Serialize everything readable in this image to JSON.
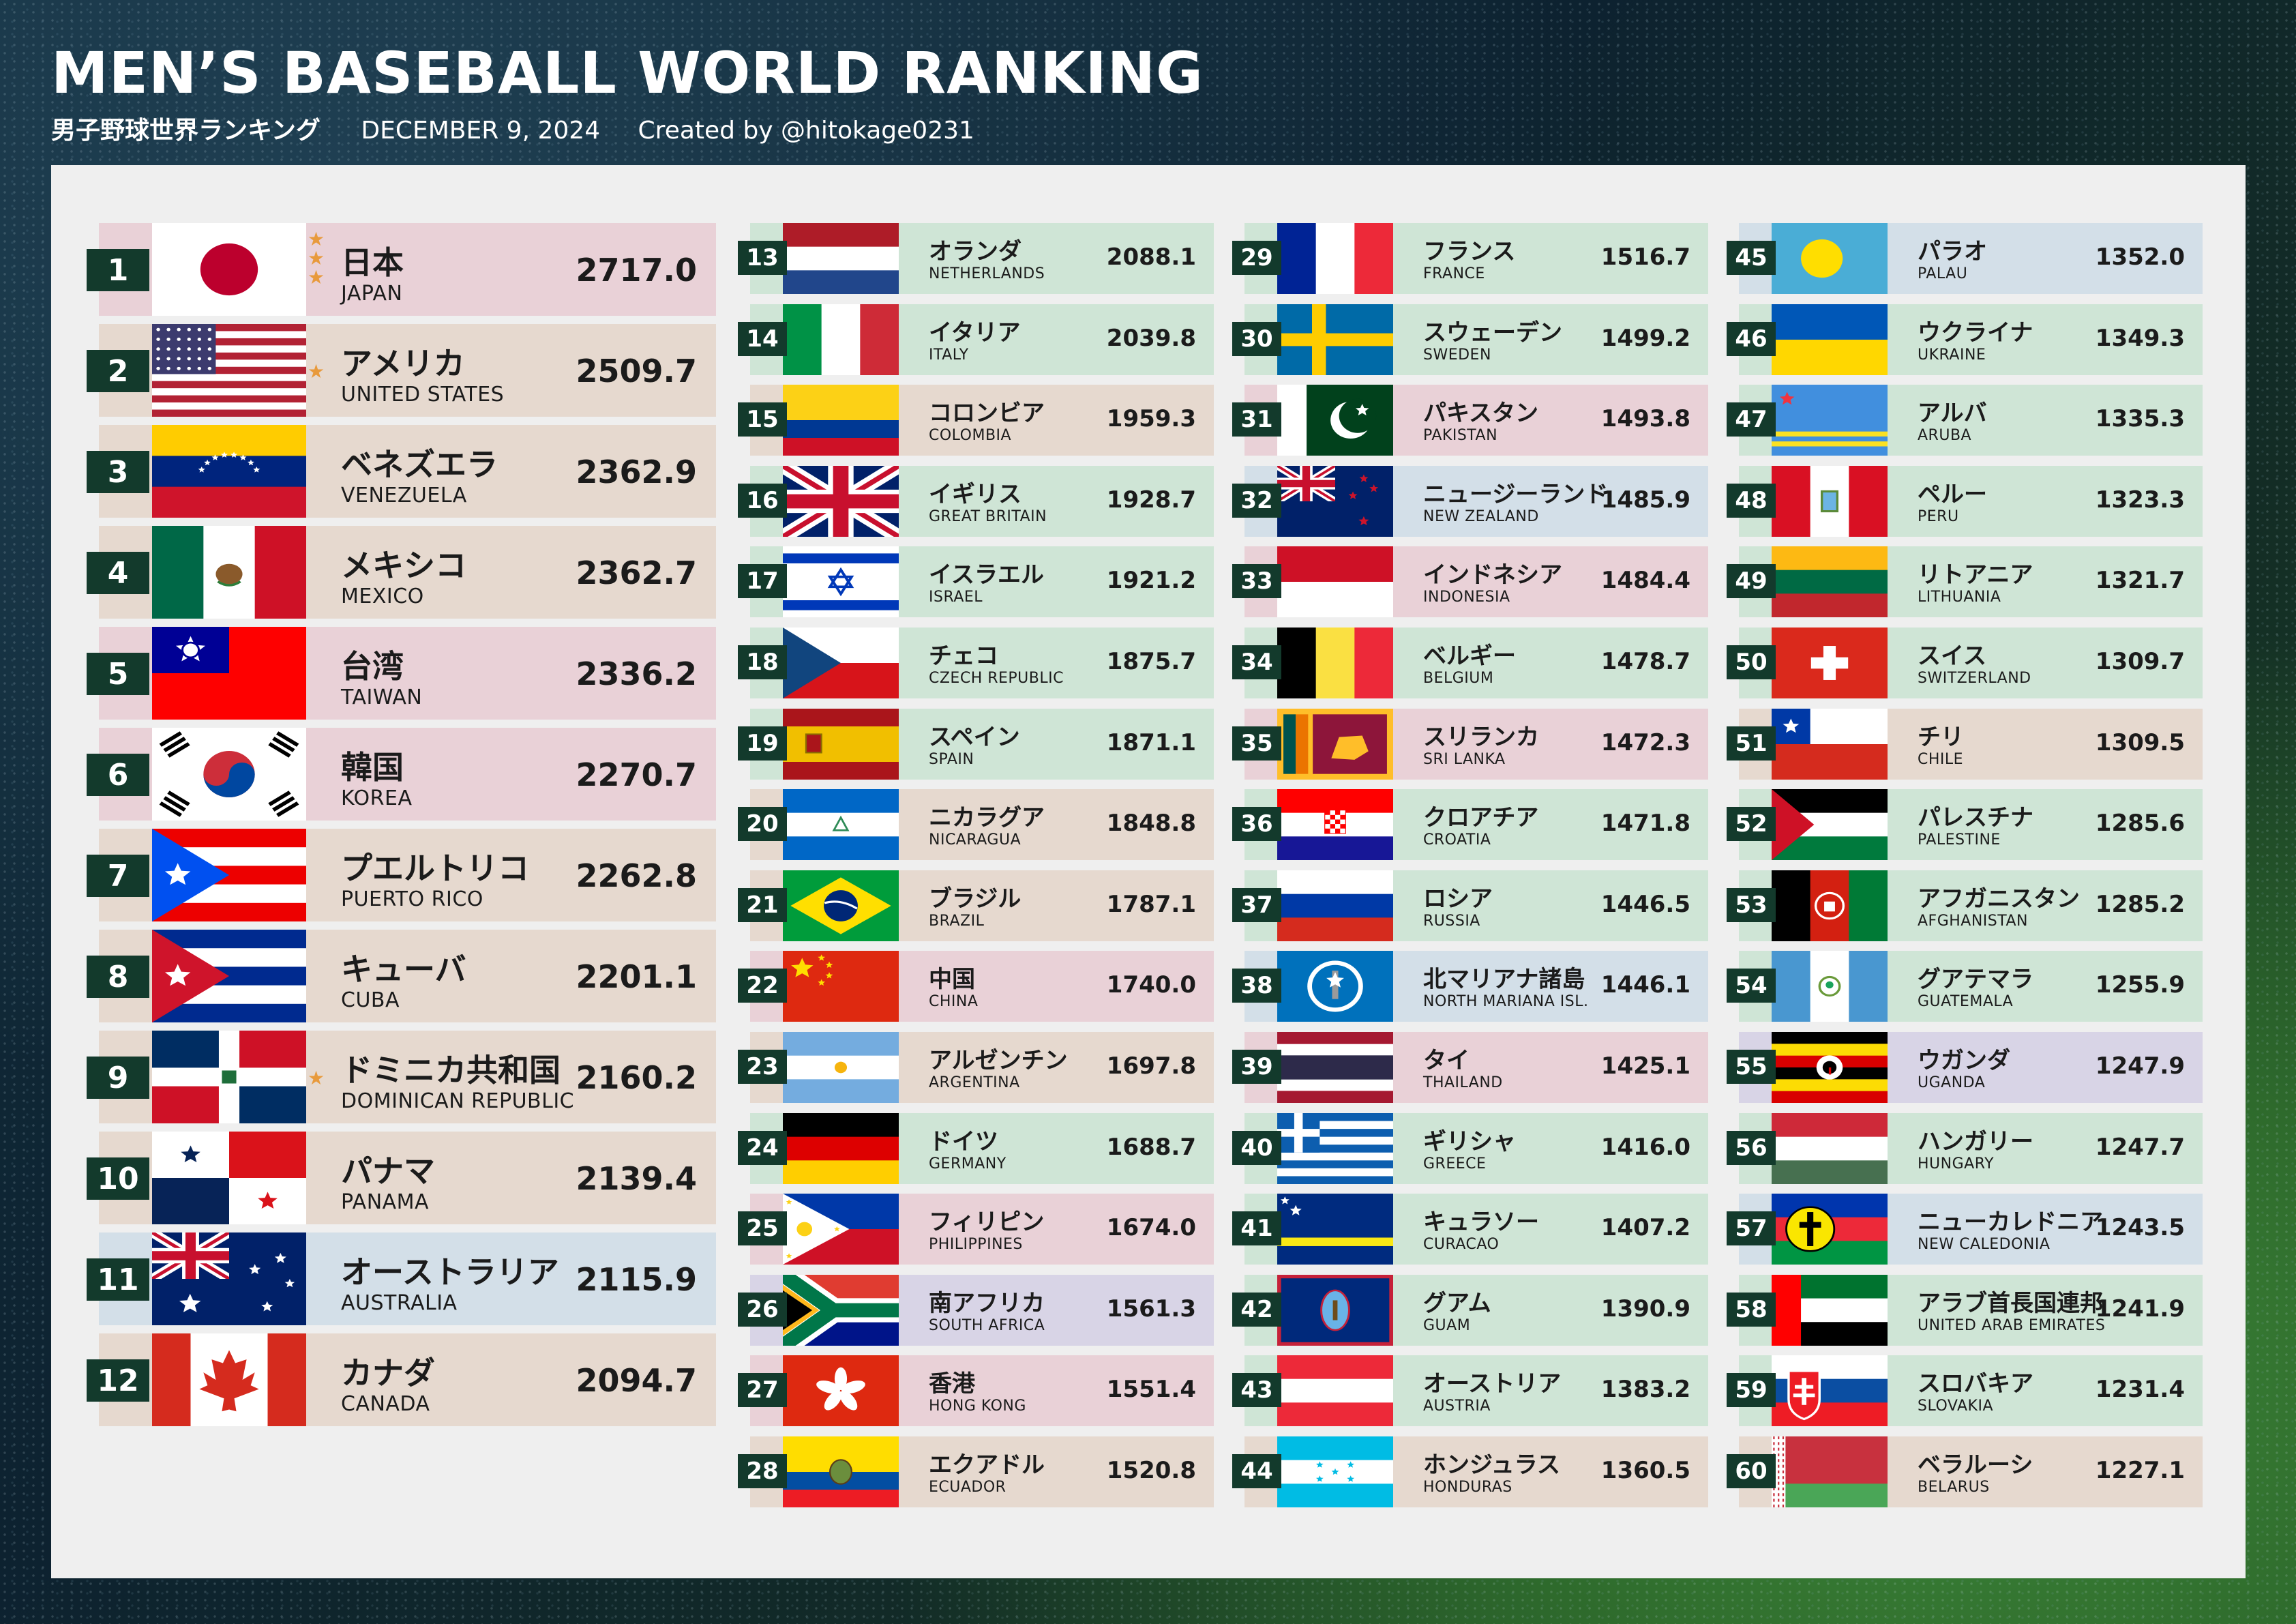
{
  "header": {
    "title": "MEN’S BASEBALL WORLD RANKING",
    "subtitle_jp": "男子野球世界ランキング",
    "date": "DECEMBER 9, 2024",
    "credit": "Created by @hitokage0231"
  },
  "colors": {
    "rank_badge": "#133a2c",
    "star": "#e89a3c",
    "panel": "#efefef"
  },
  "rankings": [
    {
      "rank": "1",
      "jp": "日本",
      "en": "JAPAN",
      "score": "2717.0",
      "stars": 3,
      "bg": "pink",
      "flag": "japan"
    },
    {
      "rank": "2",
      "jp": "アメリカ",
      "en": "UNITED STATES",
      "score": "2509.7",
      "stars": 1,
      "bg": "tan",
      "flag": "usa"
    },
    {
      "rank": "3",
      "jp": "ベネズエラ",
      "en": "VENEZUELA",
      "score": "2362.9",
      "stars": 0,
      "bg": "tan",
      "flag": "venezuela"
    },
    {
      "rank": "4",
      "jp": "メキシコ",
      "en": "MEXICO",
      "score": "2362.7",
      "stars": 0,
      "bg": "tan",
      "flag": "mexico"
    },
    {
      "rank": "5",
      "jp": "台湾",
      "en": "TAIWAN",
      "score": "2336.2",
      "stars": 0,
      "bg": "pink",
      "flag": "taiwan"
    },
    {
      "rank": "6",
      "jp": "韓国",
      "en": "KOREA",
      "score": "2270.7",
      "stars": 0,
      "bg": "pink",
      "flag": "korea"
    },
    {
      "rank": "7",
      "jp": "プエルトリコ",
      "en": "PUERTO RICO",
      "score": "2262.8",
      "stars": 0,
      "bg": "tan",
      "flag": "puertorico"
    },
    {
      "rank": "8",
      "jp": "キューバ",
      "en": "CUBA",
      "score": "2201.1",
      "stars": 0,
      "bg": "tan",
      "flag": "cuba"
    },
    {
      "rank": "9",
      "jp": "ドミニカ共和国",
      "en": "DOMINICAN REPUBLIC",
      "score": "2160.2",
      "stars": 1,
      "bg": "tan",
      "flag": "dominican"
    },
    {
      "rank": "10",
      "jp": "パナマ",
      "en": "PANAMA",
      "score": "2139.4",
      "stars": 0,
      "bg": "tan",
      "flag": "panama"
    },
    {
      "rank": "11",
      "jp": "オーストラリア",
      "en": "AUSTRALIA",
      "score": "2115.9",
      "stars": 0,
      "bg": "sky",
      "flag": "australia"
    },
    {
      "rank": "12",
      "jp": "カナダ",
      "en": "CANADA",
      "score": "2094.7",
      "stars": 0,
      "bg": "tan",
      "flag": "canada"
    },
    {
      "rank": "13",
      "jp": "オランダ",
      "en": "NETHERLANDS",
      "score": "2088.1",
      "bg": "green",
      "flag": "netherlands"
    },
    {
      "rank": "14",
      "jp": "イタリア",
      "en": "ITALY",
      "score": "2039.8",
      "bg": "green",
      "flag": "italy"
    },
    {
      "rank": "15",
      "jp": "コロンビア",
      "en": "COLOMBIA",
      "score": "1959.3",
      "bg": "tan",
      "flag": "colombia"
    },
    {
      "rank": "16",
      "jp": "イギリス",
      "en": "GREAT BRITAIN",
      "score": "1928.7",
      "bg": "green",
      "flag": "uk"
    },
    {
      "rank": "17",
      "jp": "イスラエル",
      "en": "ISRAEL",
      "score": "1921.2",
      "bg": "green",
      "flag": "israel"
    },
    {
      "rank": "18",
      "jp": "チェコ",
      "en": "CZECH REPUBLIC",
      "score": "1875.7",
      "bg": "green",
      "flag": "czech"
    },
    {
      "rank": "19",
      "jp": "スペイン",
      "en": "SPAIN",
      "score": "1871.1",
      "bg": "green",
      "flag": "spain"
    },
    {
      "rank": "20",
      "jp": "ニカラグア",
      "en": "NICARAGUA",
      "score": "1848.8",
      "bg": "tan",
      "flag": "nicaragua"
    },
    {
      "rank": "21",
      "jp": "ブラジル",
      "en": "BRAZIL",
      "score": "1787.1",
      "bg": "tan",
      "flag": "brazil"
    },
    {
      "rank": "22",
      "jp": "中国",
      "en": "CHINA",
      "score": "1740.0",
      "bg": "pink",
      "flag": "china"
    },
    {
      "rank": "23",
      "jp": "アルゼンチン",
      "en": "ARGENTINA",
      "score": "1697.8",
      "bg": "tan",
      "flag": "argentina"
    },
    {
      "rank": "24",
      "jp": "ドイツ",
      "en": "GERMANY",
      "score": "1688.7",
      "bg": "green",
      "flag": "germany"
    },
    {
      "rank": "25",
      "jp": "フィリピン",
      "en": "PHILIPPINES",
      "score": "1674.0",
      "bg": "pink",
      "flag": "philippines"
    },
    {
      "rank": "26",
      "jp": "南アフリカ",
      "en": "SOUTH AFRICA",
      "score": "1561.3",
      "bg": "lav",
      "flag": "southafrica"
    },
    {
      "rank": "27",
      "jp": "香港",
      "en": "HONG KONG",
      "score": "1551.4",
      "bg": "pink",
      "flag": "hongkong"
    },
    {
      "rank": "28",
      "jp": "エクアドル",
      "en": "ECUADOR",
      "score": "1520.8",
      "bg": "tan",
      "flag": "ecuador"
    },
    {
      "rank": "29",
      "jp": "フランス",
      "en": "FRANCE",
      "score": "1516.7",
      "bg": "green",
      "flag": "france"
    },
    {
      "rank": "30",
      "jp": "スウェーデン",
      "en": "SWEDEN",
      "score": "1499.2",
      "bg": "green",
      "flag": "sweden"
    },
    {
      "rank": "31",
      "jp": "パキスタン",
      "en": "PAKISTAN",
      "score": "1493.8",
      "bg": "pink",
      "flag": "pakistan"
    },
    {
      "rank": "32",
      "jp": "ニュージーランド",
      "en": "NEW ZEALAND",
      "score": "1485.9",
      "bg": "sky",
      "flag": "newzealand"
    },
    {
      "rank": "33",
      "jp": "インドネシア",
      "en": "INDONESIA",
      "score": "1484.4",
      "bg": "pink",
      "flag": "indonesia"
    },
    {
      "rank": "34",
      "jp": "ベルギー",
      "en": "BELGIUM",
      "score": "1478.7",
      "bg": "green",
      "flag": "belgium"
    },
    {
      "rank": "35",
      "jp": "スリランカ",
      "en": "SRI LANKA",
      "score": "1472.3",
      "bg": "pink",
      "flag": "srilanka"
    },
    {
      "rank": "36",
      "jp": "クロアチア",
      "en": "CROATIA",
      "score": "1471.8",
      "bg": "green",
      "flag": "croatia"
    },
    {
      "rank": "37",
      "jp": "ロシア",
      "en": "RUSSIA",
      "score": "1446.5",
      "bg": "green",
      "flag": "russia"
    },
    {
      "rank": "38",
      "jp": "北マリアナ諸島",
      "en": "NORTH MARIANA ISL.",
      "score": "1446.1",
      "bg": "sky",
      "flag": "nmariana"
    },
    {
      "rank": "39",
      "jp": "タイ",
      "en": "THAILAND",
      "score": "1425.1",
      "bg": "pink",
      "flag": "thailand"
    },
    {
      "rank": "40",
      "jp": "ギリシャ",
      "en": "GREECE",
      "score": "1416.0",
      "bg": "green",
      "flag": "greece"
    },
    {
      "rank": "41",
      "jp": "キュラソー",
      "en": "CURACAO",
      "score": "1407.2",
      "bg": "green",
      "flag": "curacao"
    },
    {
      "rank": "42",
      "jp": "グアム",
      "en": "GUAM",
      "score": "1390.9",
      "bg": "green",
      "flag": "guam"
    },
    {
      "rank": "43",
      "jp": "オーストリア",
      "en": "AUSTRIA",
      "score": "1383.2",
      "bg": "green",
      "flag": "austria"
    },
    {
      "rank": "44",
      "jp": "ホンジュラス",
      "en": "HONDURAS",
      "score": "1360.5",
      "bg": "tan",
      "flag": "honduras"
    },
    {
      "rank": "45",
      "jp": "パラオ",
      "en": "PALAU",
      "score": "1352.0",
      "bg": "sky",
      "flag": "palau"
    },
    {
      "rank": "46",
      "jp": "ウクライナ",
      "en": "UKRAINE",
      "score": "1349.3",
      "bg": "green",
      "flag": "ukraine"
    },
    {
      "rank": "47",
      "jp": "アルバ",
      "en": "ARUBA",
      "score": "1335.3",
      "bg": "green",
      "flag": "aruba"
    },
    {
      "rank": "48",
      "jp": "ペルー",
      "en": "PERU",
      "score": "1323.3",
      "bg": "green",
      "flag": "peru"
    },
    {
      "rank": "49",
      "jp": "リトアニア",
      "en": "LITHUANIA",
      "score": "1321.7",
      "bg": "green",
      "flag": "lithuania"
    },
    {
      "rank": "50",
      "jp": "スイス",
      "en": "SWITZERLAND",
      "score": "1309.7",
      "bg": "green",
      "flag": "switzerland"
    },
    {
      "rank": "51",
      "jp": "チリ",
      "en": "CHILE",
      "score": "1309.5",
      "bg": "tan",
      "flag": "chile"
    },
    {
      "rank": "52",
      "jp": "パレスチナ",
      "en": "PALESTINE",
      "score": "1285.6",
      "bg": "green",
      "flag": "palestine"
    },
    {
      "rank": "53",
      "jp": "アフガニスタン",
      "en": "AFGHANISTAN",
      "score": "1285.2",
      "bg": "green",
      "flag": "afghanistan"
    },
    {
      "rank": "54",
      "jp": "グアテマラ",
      "en": "GUATEMALA",
      "score": "1255.9",
      "bg": "green",
      "flag": "guatemala"
    },
    {
      "rank": "55",
      "jp": "ウガンダ",
      "en": "UGANDA",
      "score": "1247.9",
      "bg": "lav",
      "flag": "uganda"
    },
    {
      "rank": "56",
      "jp": "ハンガリー",
      "en": "HUNGARY",
      "score": "1247.7",
      "bg": "green",
      "flag": "hungary"
    },
    {
      "rank": "57",
      "jp": "ニューカレドニア",
      "en": "NEW CALEDONIA",
      "score": "1243.5",
      "bg": "sky",
      "flag": "newcaledonia"
    },
    {
      "rank": "58",
      "jp": "アラブ首長国連邦",
      "en": "UNITED ARAB EMIRATES",
      "score": "1241.9",
      "bg": "green",
      "flag": "uae"
    },
    {
      "rank": "59",
      "jp": "スロバキア",
      "en": "SLOVAKIA",
      "score": "1231.4",
      "bg": "green",
      "flag": "slovakia"
    },
    {
      "rank": "60",
      "jp": "ベラルーシ",
      "en": "BELARUS",
      "score": "1227.1",
      "bg": "tan",
      "flag": "belarus"
    }
  ]
}
